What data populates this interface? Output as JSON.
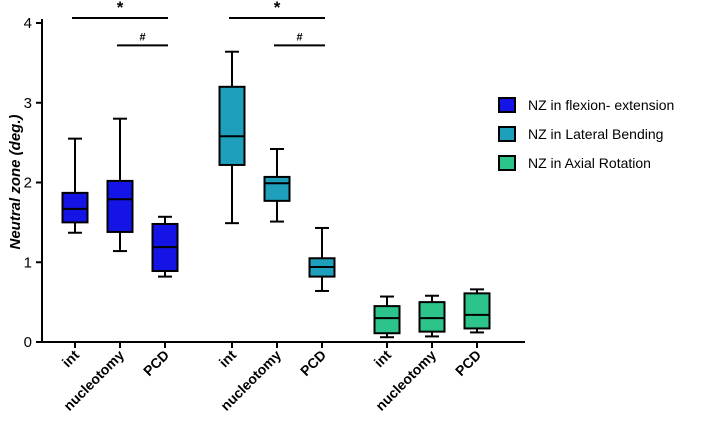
{
  "chart_data": {
    "type": "boxplot",
    "ylabel": "Neutral zone (deg.)",
    "ylim": [
      0,
      4
    ],
    "yticks": [
      "0",
      "1",
      "2",
      "3",
      "4"
    ],
    "colors": {
      "NZ in flexion- extension": "#1414e6",
      "NZ in Lateral Bending": "#1ea0bc",
      "NZ in Axial Rotation": "#2dc48c"
    },
    "groups": [
      {
        "name": "NZ in flexion- extension",
        "boxes": [
          {
            "category": "int",
            "min": 1.37,
            "q1": 1.5,
            "median": 1.67,
            "q3": 1.87,
            "max": 2.55
          },
          {
            "category": "nucleotomy",
            "min": 1.14,
            "q1": 1.38,
            "median": 1.79,
            "q3": 2.02,
            "max": 2.8
          },
          {
            "category": "PCD",
            "min": 0.82,
            "q1": 0.89,
            "median": 1.19,
            "q3": 1.48,
            "max": 1.57
          }
        ],
        "significance": [
          {
            "label": "*",
            "from": "int",
            "to": "PCD",
            "y": 4.05
          },
          {
            "label": "#",
            "from": "nucleotomy",
            "to": "PCD",
            "y": 3.72
          }
        ]
      },
      {
        "name": "NZ in Lateral Bending",
        "boxes": [
          {
            "category": "int",
            "min": 1.49,
            "q1": 2.22,
            "median": 2.58,
            "q3": 3.2,
            "max": 3.64
          },
          {
            "category": "nucleotomy",
            "min": 1.51,
            "q1": 1.77,
            "median": 1.99,
            "q3": 2.07,
            "max": 2.42
          },
          {
            "category": "PCD",
            "min": 0.64,
            "q1": 0.82,
            "median": 0.94,
            "q3": 1.05,
            "max": 1.43
          }
        ],
        "significance": [
          {
            "label": "*",
            "from": "int",
            "to": "PCD",
            "y": 4.05
          },
          {
            "label": "#",
            "from": "nucleotomy",
            "to": "PCD",
            "y": 3.72
          }
        ]
      },
      {
        "name": "NZ in Axial Rotation",
        "boxes": [
          {
            "category": "int",
            "min": 0.06,
            "q1": 0.11,
            "median": 0.3,
            "q3": 0.45,
            "max": 0.57
          },
          {
            "category": "nucleotomy",
            "min": 0.07,
            "q1": 0.13,
            "median": 0.3,
            "q3": 0.5,
            "max": 0.58
          },
          {
            "category": "PCD",
            "min": 0.12,
            "q1": 0.17,
            "median": 0.34,
            "q3": 0.61,
            "max": 0.66
          }
        ],
        "significance": []
      }
    ],
    "legend": [
      "NZ in flexion- extension",
      "NZ in Lateral Bending",
      "NZ in Axial Rotation"
    ]
  }
}
